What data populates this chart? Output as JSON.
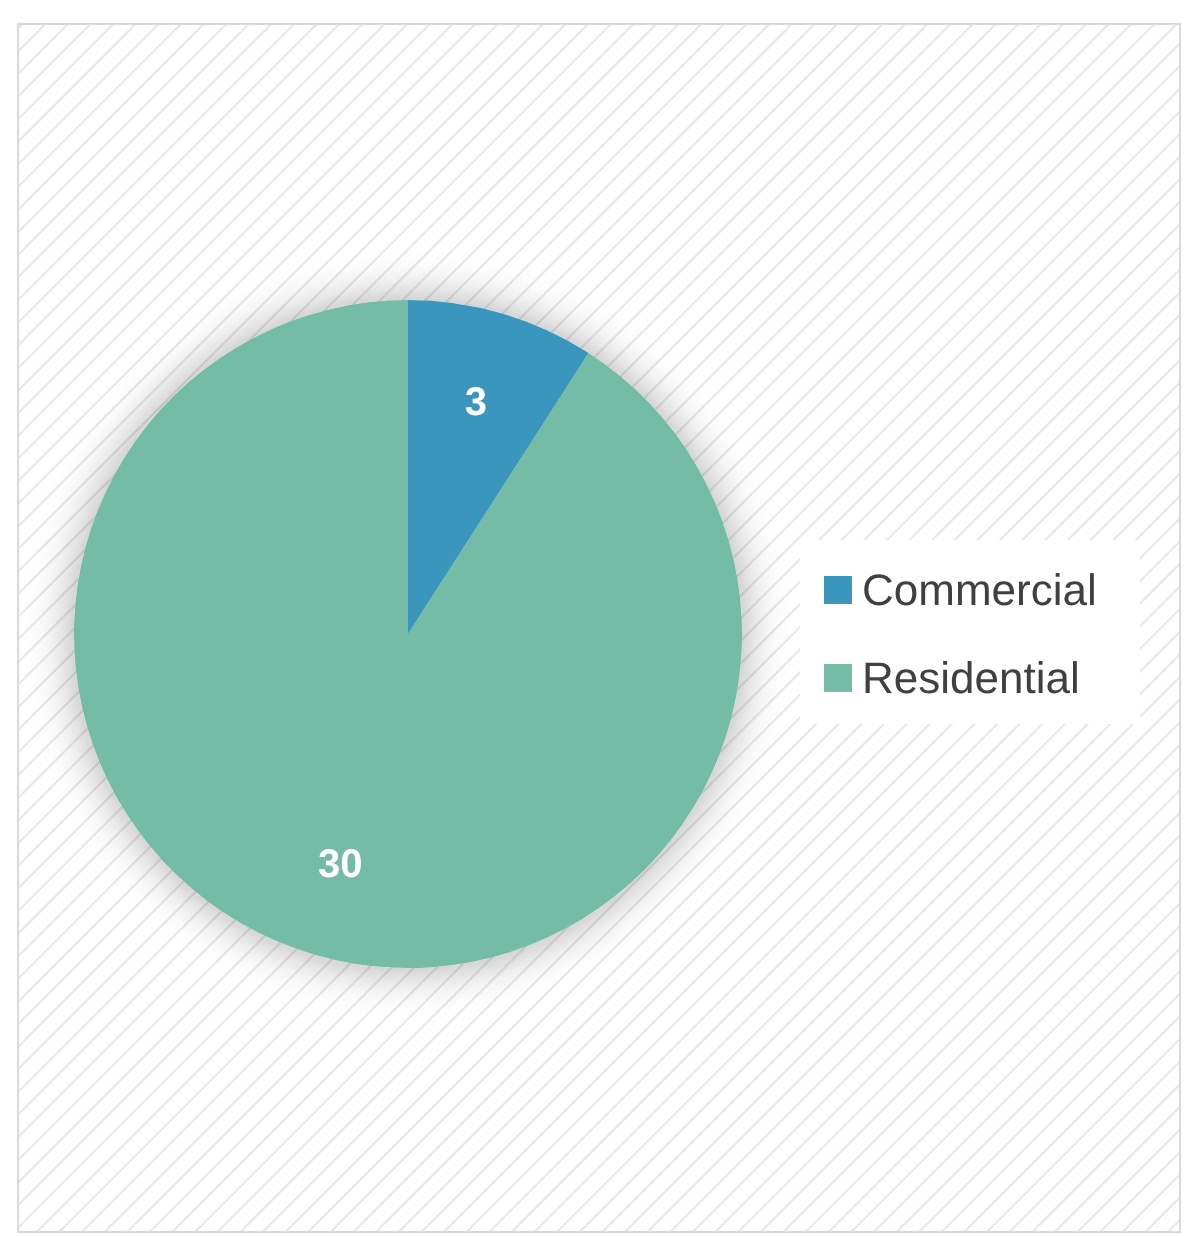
{
  "chart_data": {
    "type": "pie",
    "categories": [
      "Commercial",
      "Residential"
    ],
    "values": [
      3,
      30
    ],
    "colors": [
      "#3a96bd",
      "#75bca6"
    ],
    "data_labels": true,
    "legend": "right"
  }
}
